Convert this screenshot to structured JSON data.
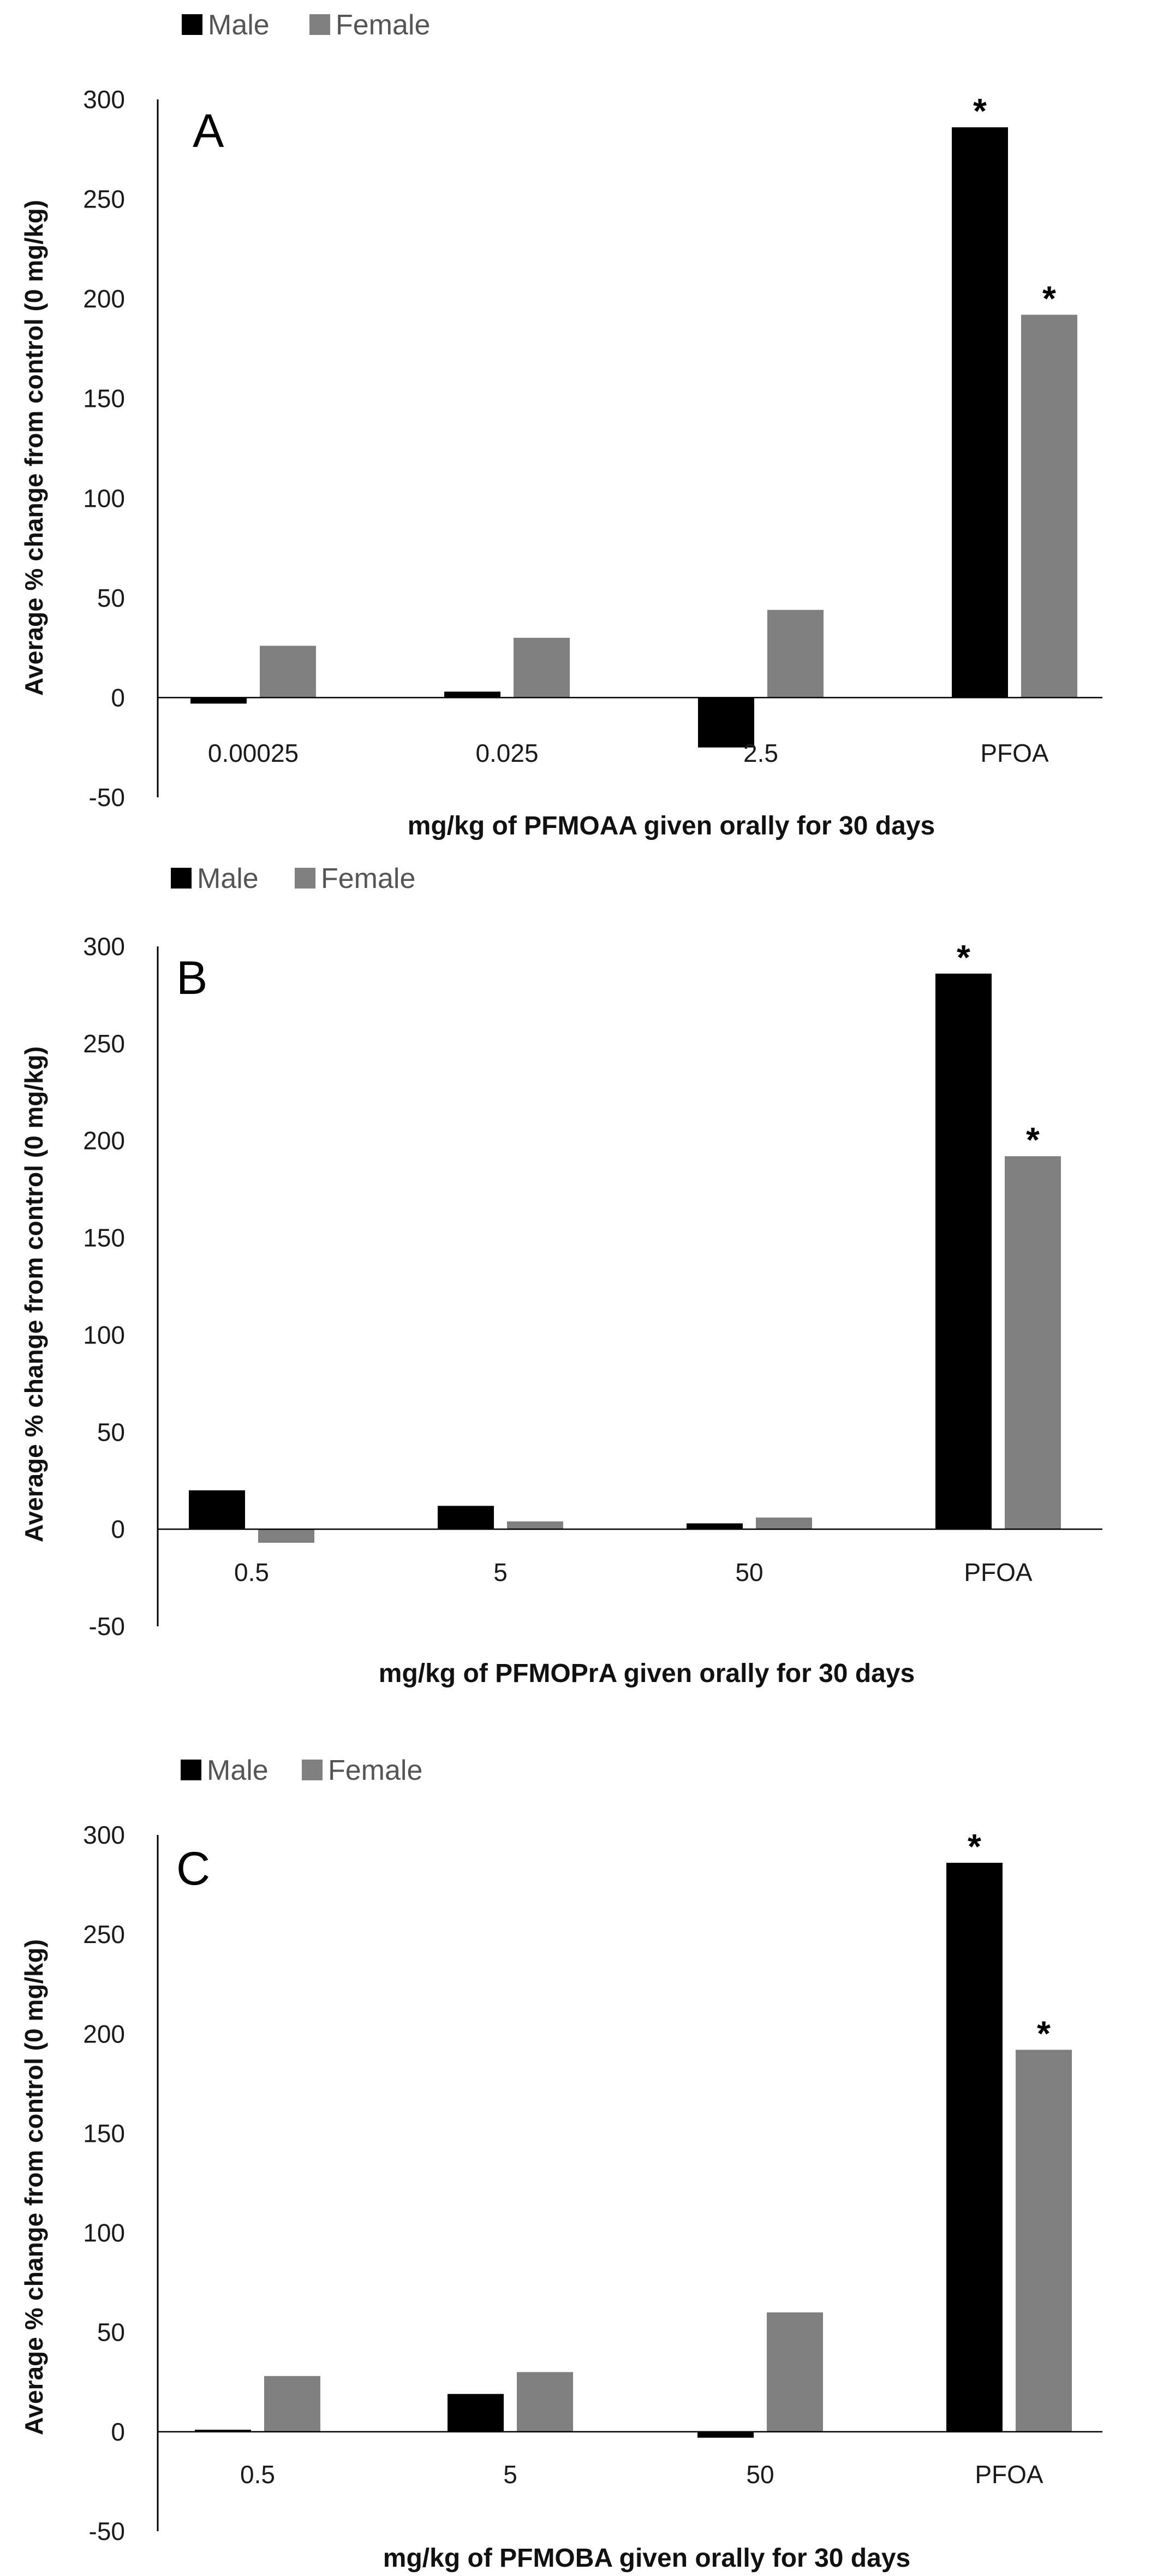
{
  "chart_data": [
    {
      "type": "bar",
      "panel_label": "A",
      "categories": [
        "0.00025",
        "0.025",
        "2.5",
        "PFOA"
      ],
      "series": [
        {
          "name": "Male",
          "values": [
            -3,
            3,
            -25,
            286
          ],
          "color": "#000000"
        },
        {
          "name": "Female",
          "values": [
            26,
            30,
            44,
            192
          ],
          "color": "#808080"
        }
      ],
      "significance": [
        {
          "series": "Male",
          "category": "PFOA",
          "marker": "*"
        },
        {
          "series": "Female",
          "category": "PFOA",
          "marker": "*"
        }
      ],
      "title": "",
      "xlabel": "mg/kg of PFMOAA given orally for 30 days",
      "ylabel": "Average % change from control (0 mg/kg)",
      "ylim": [
        -50,
        300
      ],
      "yticks": [
        "300",
        "250",
        "200",
        "150",
        "100",
        "50",
        "0",
        "-50"
      ],
      "legend": [
        "Male",
        "Female"
      ],
      "legend_position": "top-left",
      "grid": false
    },
    {
      "type": "bar",
      "panel_label": "B",
      "categories": [
        "0.5",
        "5",
        "50",
        "PFOA"
      ],
      "series": [
        {
          "name": "Male",
          "values": [
            20,
            12,
            3,
            286
          ],
          "color": "#000000"
        },
        {
          "name": "Female",
          "values": [
            -7,
            4,
            6,
            192
          ],
          "color": "#808080"
        }
      ],
      "significance": [
        {
          "series": "Male",
          "category": "PFOA",
          "marker": "*"
        },
        {
          "series": "Female",
          "category": "PFOA",
          "marker": "*"
        }
      ],
      "title": "",
      "xlabel": "mg/kg of PFMOPrA given orally for 30 days",
      "ylabel": "Average % change from control (0 mg/kg)",
      "ylim": [
        -50,
        300
      ],
      "yticks": [
        "300",
        "250",
        "200",
        "150",
        "100",
        "50",
        "0",
        "-50"
      ],
      "legend": [
        "Male",
        "Female"
      ],
      "legend_position": "top-left",
      "grid": false
    },
    {
      "type": "bar",
      "panel_label": "C",
      "categories": [
        "0.5",
        "5",
        "50",
        "PFOA"
      ],
      "series": [
        {
          "name": "Male",
          "values": [
            1,
            19,
            -3,
            286
          ],
          "color": "#000000"
        },
        {
          "name": "Female",
          "values": [
            28,
            30,
            60,
            192
          ],
          "color": "#808080"
        }
      ],
      "significance": [
        {
          "series": "Male",
          "category": "PFOA",
          "marker": "*"
        },
        {
          "series": "Female",
          "category": "PFOA",
          "marker": "*"
        }
      ],
      "title": "",
      "xlabel": "mg/kg of PFMOBA given orally for 30 days",
      "ylabel": "Average % change from control (0 mg/kg)",
      "ylim": [
        -50,
        300
      ],
      "yticks": [
        "300",
        "250",
        "200",
        "150",
        "100",
        "50",
        "0",
        "-50"
      ],
      "legend": [
        "Male",
        "Female"
      ],
      "legend_position": "top-left",
      "grid": false
    }
  ]
}
